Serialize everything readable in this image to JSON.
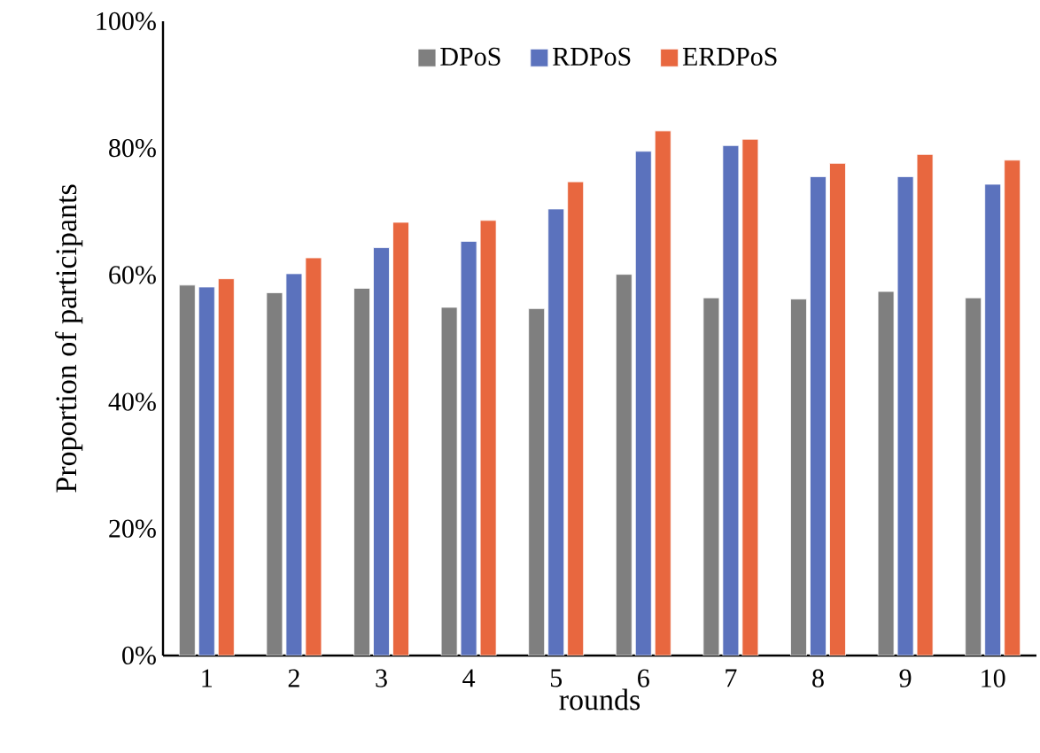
{
  "chart_data": {
    "type": "bar",
    "xlabel": "rounds",
    "ylabel": "Proportion of participants",
    "categories": [
      "1",
      "2",
      "3",
      "4",
      "5",
      "6",
      "7",
      "8",
      "9",
      "10"
    ],
    "series": [
      {
        "name": "DPoS",
        "color": "#7f7f7f",
        "values": [
          58.4,
          57.2,
          57.9,
          54.9,
          54.7,
          60.1,
          56.4,
          56.2,
          57.4,
          56.4
        ]
      },
      {
        "name": "RDPoS",
        "color": "#5b72bd",
        "values": [
          58.1,
          60.2,
          64.3,
          65.3,
          70.4,
          79.5,
          80.4,
          75.5,
          75.5,
          74.3
        ]
      },
      {
        "name": "ERDPoS",
        "color": "#e8673f",
        "values": [
          59.4,
          62.7,
          68.3,
          68.6,
          74.7,
          82.7,
          81.4,
          77.6,
          79.0,
          78.1
        ]
      }
    ],
    "ylim": [
      0,
      100
    ],
    "yticks": [
      {
        "value": 0,
        "label": "0%"
      },
      {
        "value": 20,
        "label": "20%"
      },
      {
        "value": 40,
        "label": "40%"
      },
      {
        "value": 60,
        "label": "60%"
      },
      {
        "value": 80,
        "label": "80%"
      },
      {
        "value": 100,
        "label": "100%"
      }
    ],
    "grid": false,
    "legend": "top"
  }
}
